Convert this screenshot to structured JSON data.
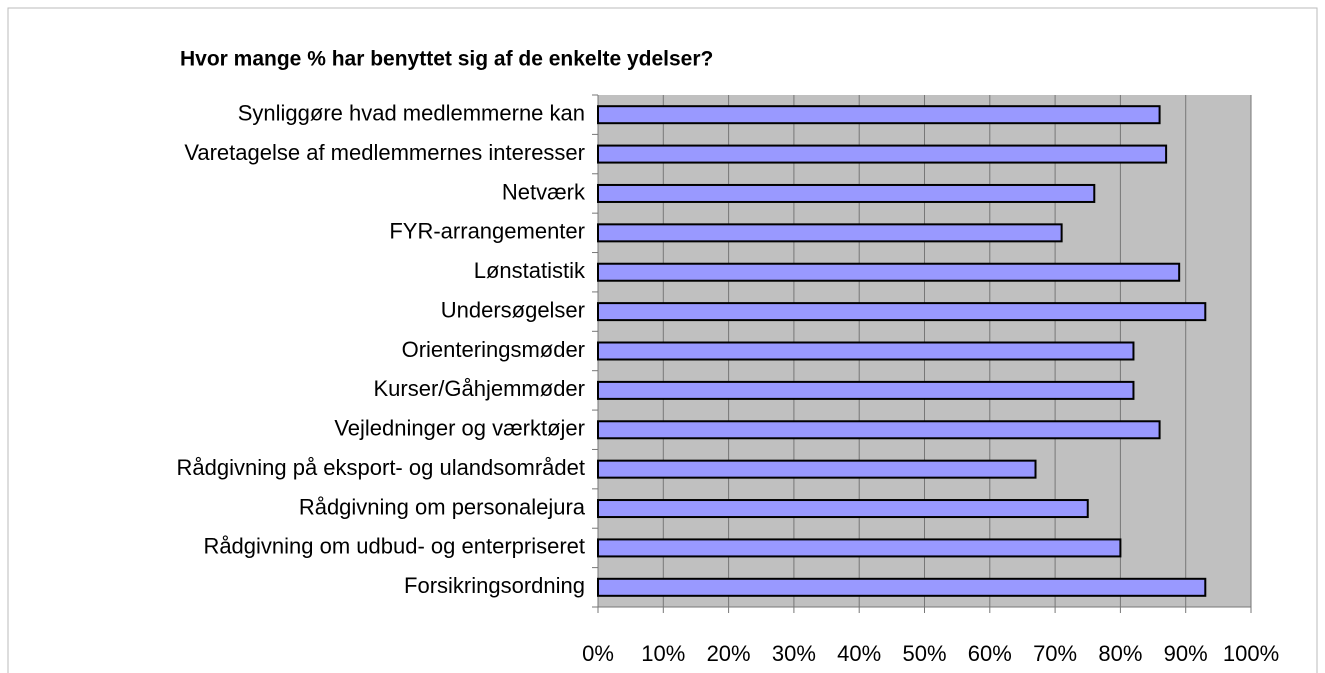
{
  "chart_data": {
    "type": "bar",
    "orientation": "horizontal",
    "title": "Hvor mange % har benyttet sig af de enkelte ydelser?",
    "categories": [
      "Synliggøre hvad medlemmerne kan",
      "Varetagelse af medlemmernes interesser",
      "Netværk",
      "FYR-arrangementer",
      "Lønstatistik",
      "Undersøgelser",
      "Orienteringsmøder",
      "Kurser/Gåhjemmøder",
      "Vejledninger og værktøjer",
      "Rådgivning på eksport- og ulandsområdet",
      "Rådgivning om personalejura",
      "Rådgivning om udbud- og enterpriseret",
      "Forsikringsordning"
    ],
    "values": [
      86,
      87,
      76,
      71,
      89,
      93,
      82,
      82,
      86,
      67,
      75,
      80,
      93
    ],
    "color": "#9999ff",
    "xlim": [
      0,
      100
    ],
    "xticks": [
      {
        "value": 0,
        "label": "0%"
      },
      {
        "value": 10,
        "label": "10%"
      },
      {
        "value": 20,
        "label": "20%"
      },
      {
        "value": 30,
        "label": "30%"
      },
      {
        "value": 40,
        "label": "40%"
      },
      {
        "value": 50,
        "label": "50%"
      },
      {
        "value": 60,
        "label": "60%"
      },
      {
        "value": 70,
        "label": "70%"
      },
      {
        "value": 80,
        "label": "80%"
      },
      {
        "value": 90,
        "label": "90%"
      },
      {
        "value": 100,
        "label": "100%"
      }
    ],
    "grid": true
  }
}
